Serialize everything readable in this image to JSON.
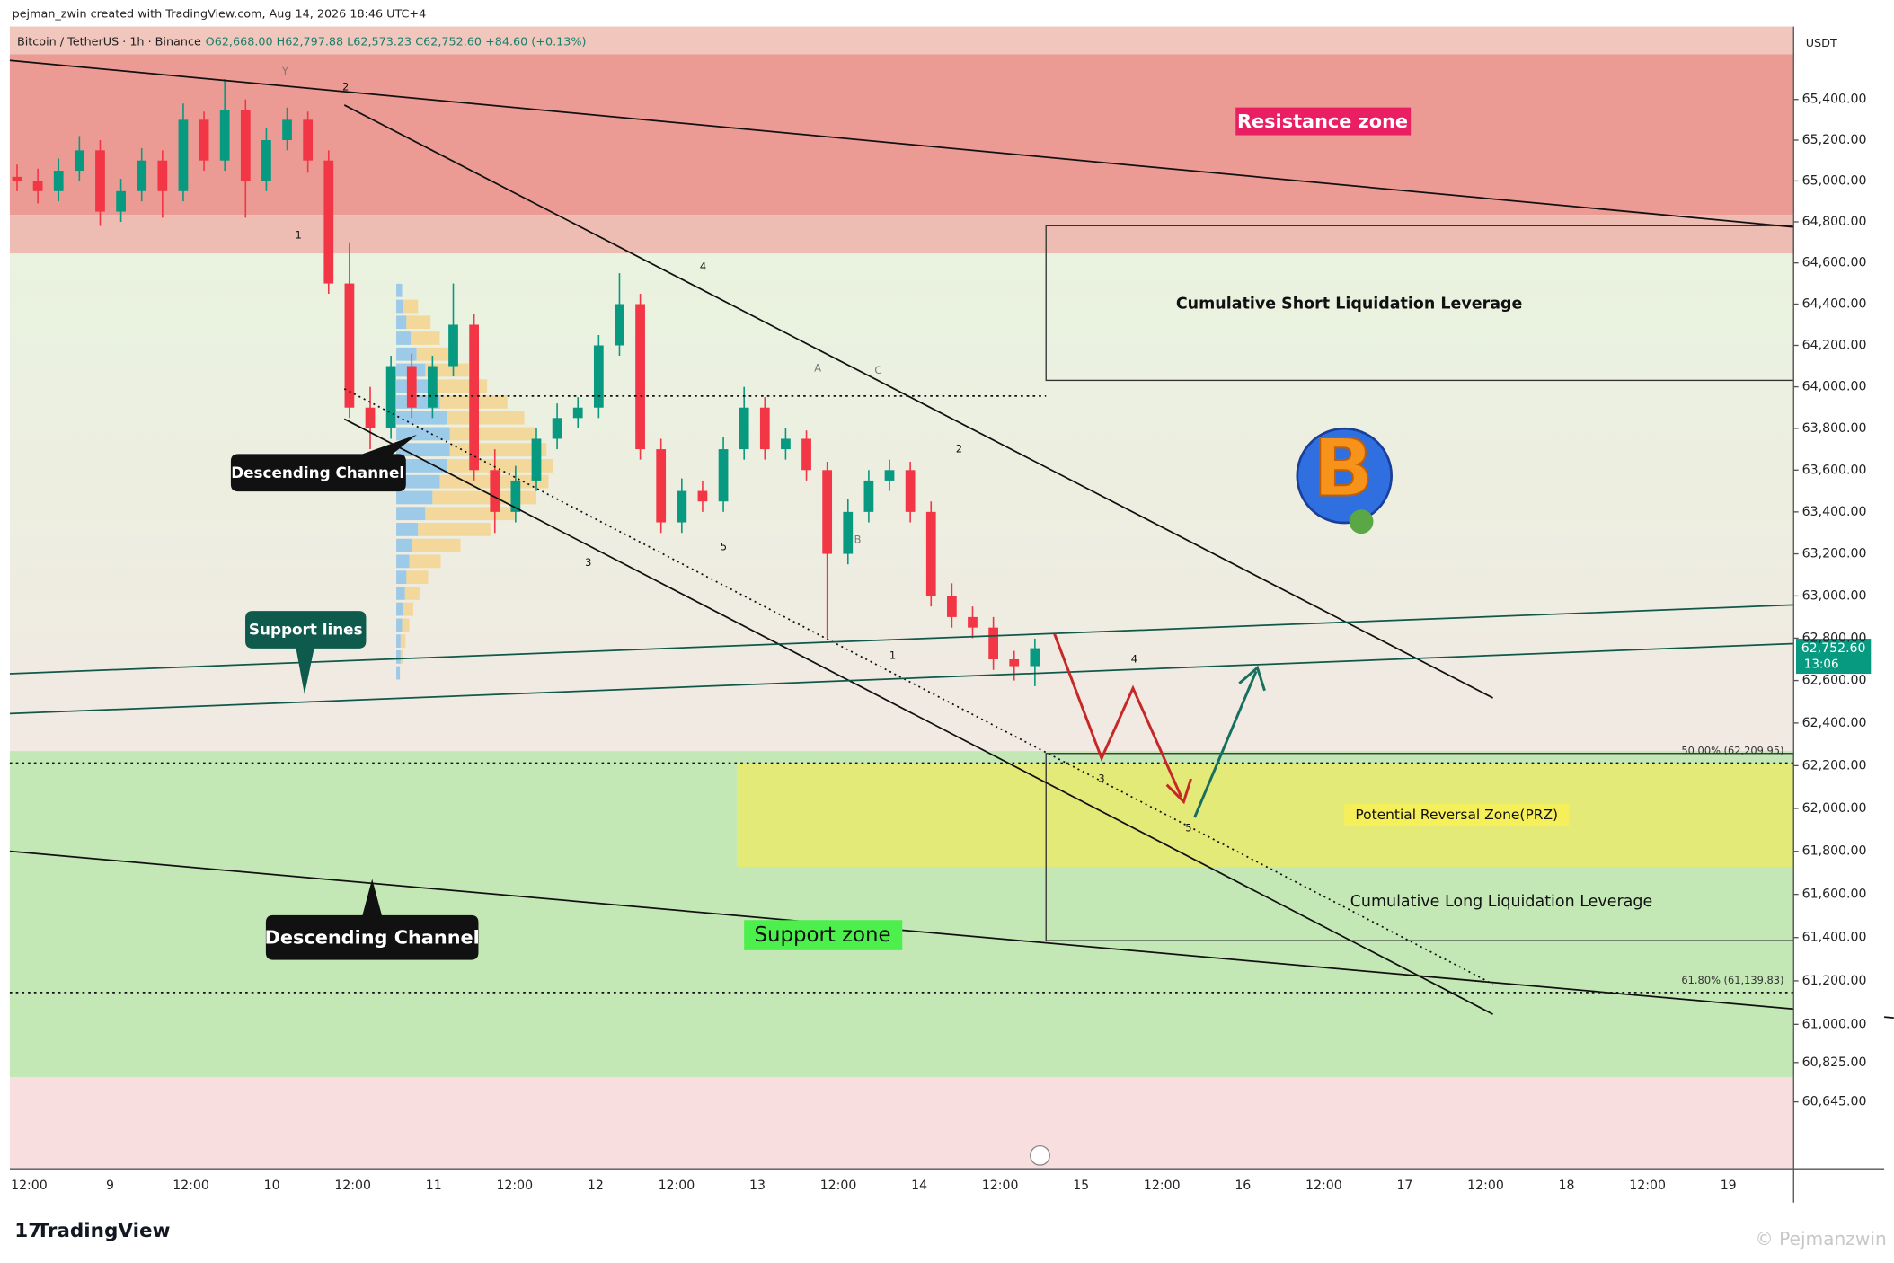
{
  "header": {
    "credit": "pejman_zwin created with TradingView.com, Aug 14, 2026 18:46 UTC+4",
    "symbol": "Bitcoin / TetherUS · 1h · Binance",
    "ohlc": "O62,668.00 H62,797.88 L62,573.23 C62,752.60 +84.60 (+0.13%)"
  },
  "chart_data": {
    "type": "candlestick",
    "log_scale": true,
    "currency": "USDT",
    "up_color": "#089981",
    "down_color": "#f23645",
    "open": [
      65020,
      65000,
      64950,
      65050,
      65150,
      64850,
      64950,
      65100,
      64950,
      65300,
      65100,
      65350,
      65000,
      65200,
      65300,
      65100,
      64500,
      63900,
      63800,
      64100,
      63900,
      64100,
      64300,
      63600,
      63400,
      63550,
      63750,
      63850,
      63900,
      64200,
      64400,
      63700,
      63350,
      63500,
      63450,
      63700,
      63900,
      63700,
      63750,
      63600,
      63200,
      63400,
      63550,
      63600,
      63400,
      63000,
      62900,
      62850,
      62700,
      62668
    ],
    "high": [
      65080,
      65060,
      65110,
      65220,
      65200,
      65010,
      65160,
      65150,
      65380,
      65340,
      65500,
      65400,
      65260,
      65360,
      65340,
      65150,
      64700,
      64000,
      64150,
      64160,
      64150,
      64500,
      64350,
      63700,
      63620,
      63800,
      63920,
      63950,
      64250,
      64550,
      64450,
      63750,
      63560,
      63550,
      63760,
      64000,
      63950,
      63800,
      63790,
      63640,
      63460,
      63600,
      63650,
      63640,
      63450,
      63060,
      62950,
      62900,
      62740,
      62797.88
    ],
    "low": [
      64950,
      64890,
      64900,
      65000,
      64780,
      64800,
      64900,
      64820,
      64900,
      65050,
      65050,
      64820,
      64950,
      65150,
      65040,
      64450,
      63850,
      63700,
      63750,
      63850,
      63850,
      64050,
      63550,
      63300,
      63350,
      63500,
      63700,
      63800,
      63850,
      64150,
      63650,
      63300,
      63300,
      63400,
      63400,
      63650,
      63650,
      63650,
      63550,
      62800,
      63150,
      63350,
      63500,
      63350,
      62950,
      62850,
      62800,
      62650,
      62600,
      62573.23
    ],
    "close": [
      65000,
      64950,
      65050,
      65150,
      64850,
      64950,
      65100,
      64950,
      65300,
      65100,
      65350,
      65000,
      65200,
      65300,
      65100,
      64500,
      63900,
      63800,
      64100,
      63900,
      64100,
      64300,
      63600,
      63400,
      63550,
      63750,
      63850,
      63900,
      64200,
      64400,
      63700,
      63350,
      63500,
      63450,
      63700,
      63900,
      63700,
      63750,
      63600,
      63200,
      63400,
      63550,
      63600,
      63400,
      63000,
      62900,
      62850,
      62700,
      62668,
      62752.6
    ],
    "ylim": [
      60340,
      65760
    ],
    "yticks": [
      {
        "value": 65400,
        "label": "65,400.00"
      },
      {
        "value": 65200,
        "label": "65,200.00"
      },
      {
        "value": 65000,
        "label": "65,000.00"
      },
      {
        "value": 64800,
        "label": "64,800.00"
      },
      {
        "value": 64600,
        "label": "64,600.00"
      },
      {
        "value": 64400,
        "label": "64,400.00"
      },
      {
        "value": 64200,
        "label": "64,200.00"
      },
      {
        "value": 64000,
        "label": "64,000.00"
      },
      {
        "value": 63800,
        "label": "63,800.00"
      },
      {
        "value": 63600,
        "label": "63,600.00"
      },
      {
        "value": 63400,
        "label": "63,400.00"
      },
      {
        "value": 63200,
        "label": "63,200.00"
      },
      {
        "value": 63000,
        "label": "63,000.00"
      },
      {
        "value": 62800,
        "label": "62,800.00"
      },
      {
        "value": 62600,
        "label": "62,600.00"
      },
      {
        "value": 62400,
        "label": "62,400.00"
      },
      {
        "value": 62200,
        "label": "62,200.00"
      },
      {
        "value": 62000,
        "label": "62,000.00"
      },
      {
        "value": 61800,
        "label": "61,800.00"
      },
      {
        "value": 61600,
        "label": "61,600.00"
      },
      {
        "value": 61400,
        "label": "61,400.00"
      },
      {
        "value": 61200,
        "label": "61,200.00"
      },
      {
        "value": 61000,
        "label": "61,000.00"
      },
      {
        "value": 60825,
        "label": "60,825.00"
      },
      {
        "value": 60645,
        "label": "60,645.00"
      }
    ],
    "x_tick_labels": [
      "12:00",
      "9",
      "12:00",
      "10",
      "12:00",
      "11",
      "12:00",
      "12",
      "12:00",
      "13",
      "12:00",
      "14",
      "12:00",
      "15",
      "12:00",
      "16",
      "12:00",
      "17",
      "12:00",
      "18",
      "12:00",
      "19"
    ],
    "price_tag": "62,752.60",
    "countdown": "13:06",
    "annotations": {
      "resistance": "Resistance zone",
      "short_liq": "Cumulative Short Liquidation Leverage",
      "prz": "Potential Reversal Zone(PRZ)",
      "long_liq": "Cumulative Long Liquidation Leverage",
      "support_zone": "Support zone",
      "channel_1": "Descending Channel",
      "channel_2": "Descending Channel",
      "support_lines": "Support lines",
      "fib_50": "50.00% (62,209.95)",
      "fib_618": "61.80% (61,139.83)",
      "waves": [
        "Y",
        "2",
        "1",
        "4",
        "3",
        "5",
        "A",
        "C",
        "B",
        "1",
        "2",
        "4",
        "3",
        "5"
      ]
    }
  },
  "footer": {
    "brand": "TradingView",
    "watermark": "© Pejmanzwin"
  }
}
